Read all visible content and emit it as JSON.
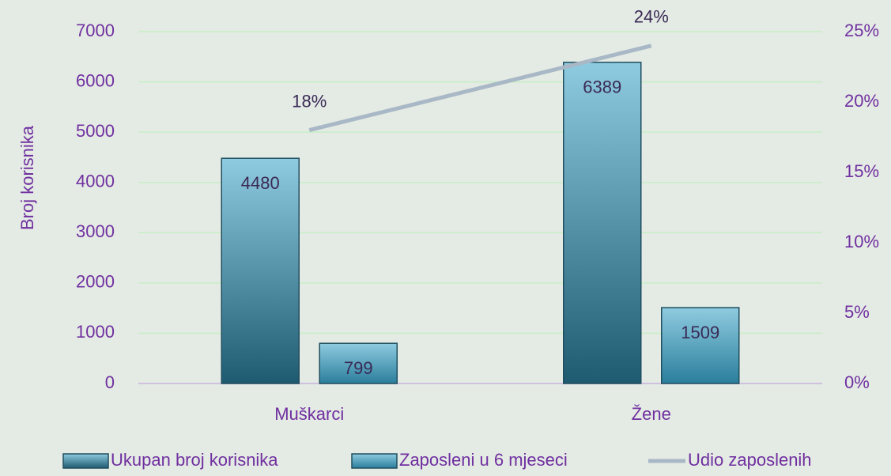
{
  "chart_data": {
    "type": "bar",
    "y_label": "Broj korisnika",
    "categories": [
      "Muškarci",
      "Žene"
    ],
    "series": [
      {
        "name": "Ukupan broj korisnika",
        "color": "#2b6f8a",
        "values": [
          4480,
          6389
        ]
      },
      {
        "name": "Zaposleni u 6 mjeseci",
        "color": "#4a9ab8",
        "values": [
          799,
          1509
        ]
      },
      {
        "name": "Udio zaposlenih",
        "color": "#a9b8c6",
        "type": "line",
        "axis": "y2",
        "values": [
          18,
          24
        ],
        "value_labels": [
          "18%",
          "24%"
        ]
      }
    ],
    "ylim": [
      0,
      7000
    ],
    "yticks": [
      0,
      1000,
      2000,
      3000,
      4000,
      5000,
      6000,
      7000
    ],
    "y2lim": [
      0,
      25
    ],
    "y2ticks": [
      {
        "value": 0,
        "label": "0%"
      },
      {
        "value": 5,
        "label": "5%"
      },
      {
        "value": 10,
        "label": "10%"
      },
      {
        "value": 15,
        "label": "15%"
      },
      {
        "value": 20,
        "label": "20%"
      },
      {
        "value": 25,
        "label": "25%"
      }
    ],
    "grid": true,
    "legend": "bottom"
  }
}
